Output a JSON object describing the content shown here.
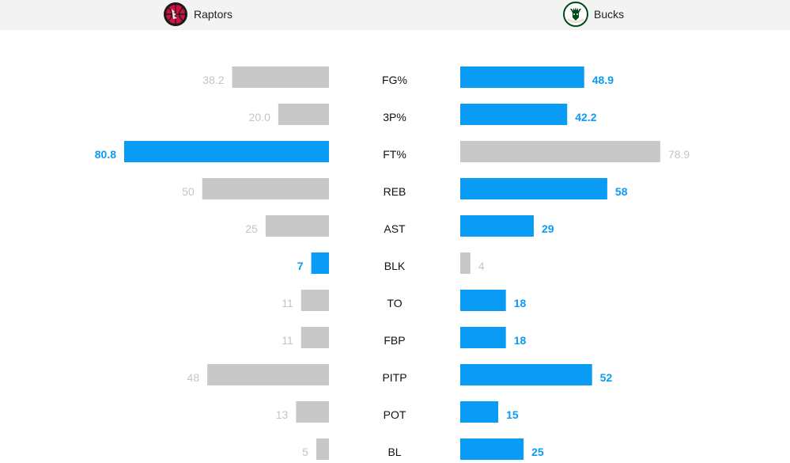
{
  "header": {
    "left_team": "Raptors",
    "right_team": "Bucks",
    "left_logo_text": "TORONTO RAPTORS"
  },
  "colors": {
    "win": "#0a9bf5",
    "lose": "#c8c8c8",
    "lose_text": "#c4c4c4",
    "raptors_logo": "#ce1141",
    "bucks_logo": "#00471b"
  },
  "chart_data": {
    "type": "bar",
    "categories": [
      "FG%",
      "3P%",
      "FT%",
      "REB",
      "AST",
      "BLK",
      "TO",
      "FBP",
      "PITP",
      "POT",
      "BL"
    ],
    "series": [
      {
        "name": "Raptors",
        "values": [
          38.2,
          20.0,
          80.8,
          50,
          25,
          7,
          11,
          11,
          48,
          13,
          5
        ],
        "labels": [
          "38.2",
          "20.0",
          "80.8",
          "50",
          "25",
          "7",
          "11",
          "11",
          "48",
          "13",
          "5"
        ]
      },
      {
        "name": "Bucks",
        "values": [
          48.9,
          42.2,
          78.9,
          58,
          29,
          4,
          18,
          18,
          52,
          15,
          25
        ],
        "labels": [
          "48.9",
          "42.2",
          "78.9",
          "58",
          "29",
          "4",
          "18",
          "18",
          "52",
          "15",
          "25"
        ]
      }
    ],
    "higher_wins": [
      true,
      true,
      true,
      true,
      true,
      true,
      true,
      true,
      true,
      true,
      true
    ],
    "grid": false,
    "legend": "none"
  }
}
